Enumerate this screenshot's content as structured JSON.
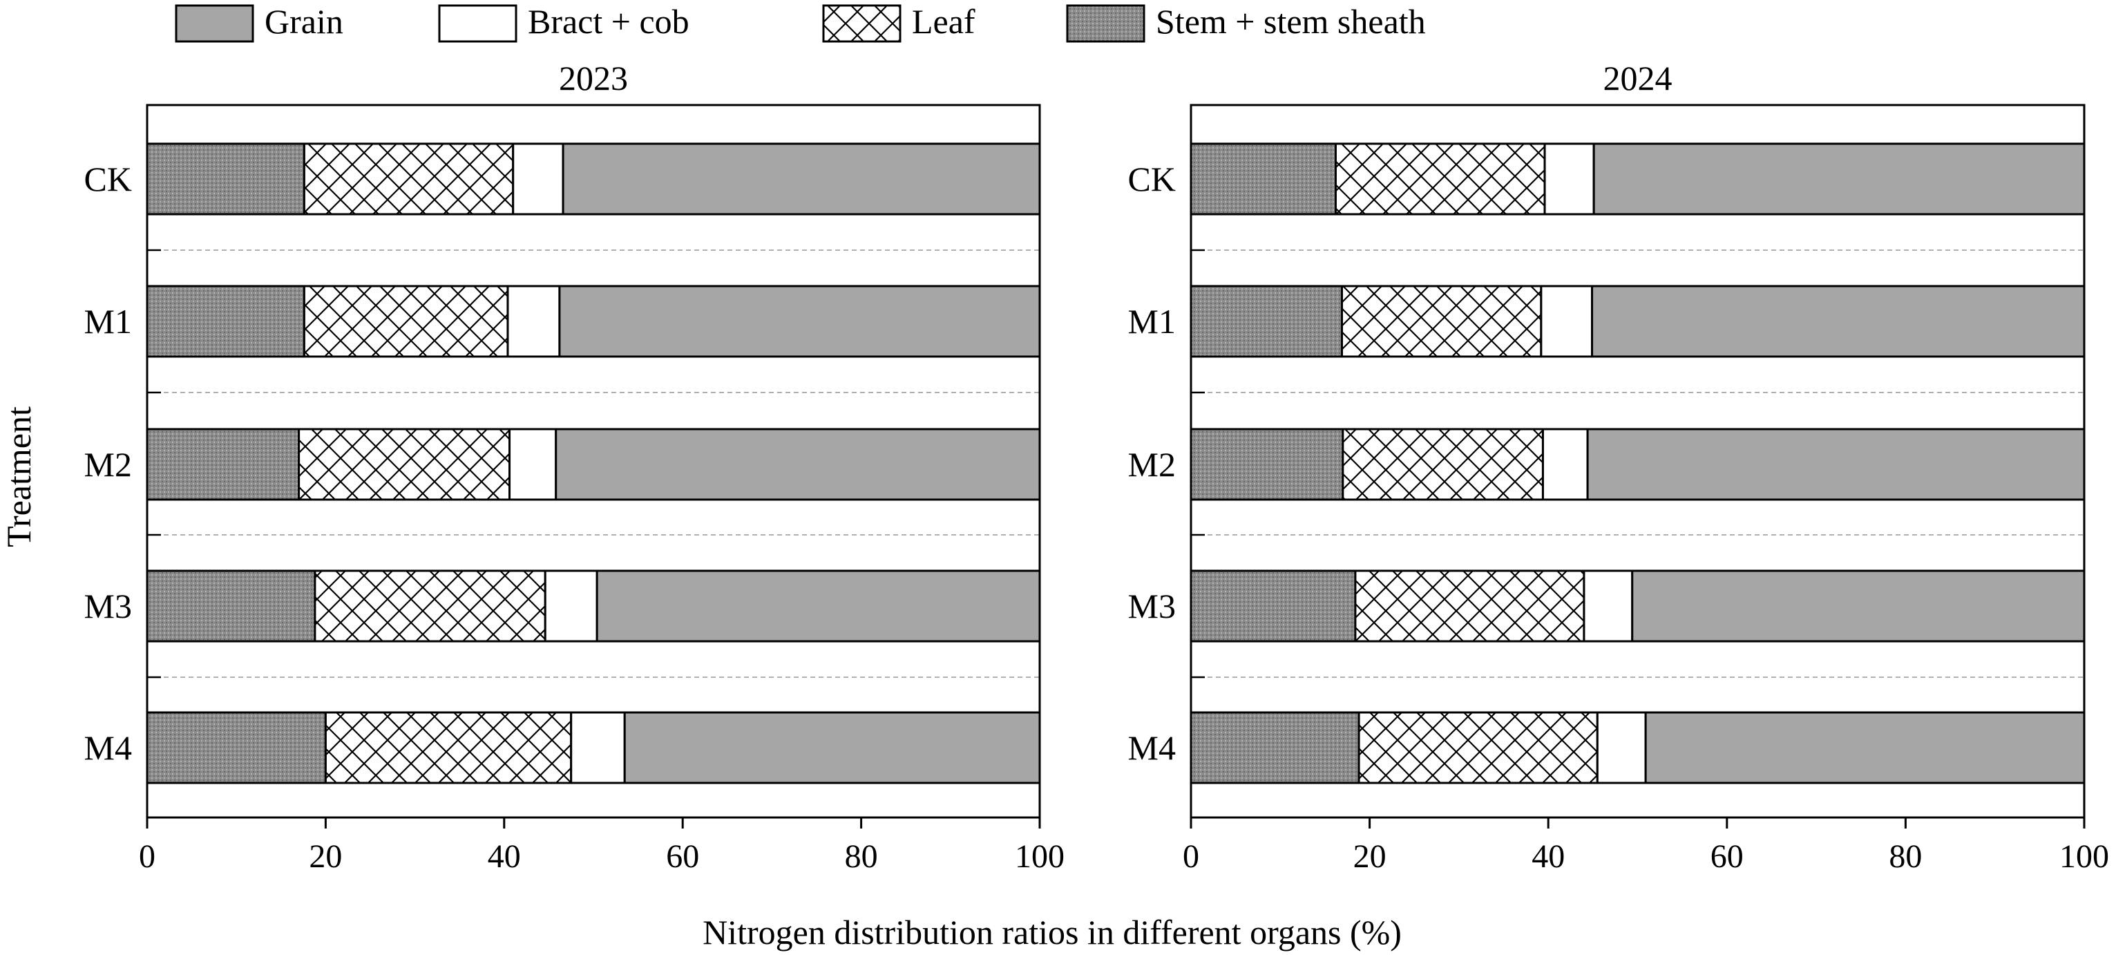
{
  "legend": {
    "placement": "top",
    "items": [
      {
        "key": "grain",
        "label": "Grain",
        "pattern": "solid-gray"
      },
      {
        "key": "bract",
        "label": "Bract + cob",
        "pattern": "white"
      },
      {
        "key": "leaf",
        "label": "Leaf",
        "pattern": "crosshatch"
      },
      {
        "key": "stem",
        "label": "Stem + stem sheath",
        "pattern": "stipple"
      }
    ]
  },
  "colors": {
    "grain": "#a6a6a6",
    "bract": "#ffffff",
    "stem": "#8c8c8c",
    "outline": "#000000",
    "separator": "#b0b0b0"
  },
  "ylabel": "Treatment",
  "xlabel": "Nitrogen distribution ratios in different organs (%)",
  "chart_data": [
    {
      "type": "bar",
      "orientation": "horizontal",
      "stacked": true,
      "title": "2023",
      "categories": [
        "CK",
        "M1",
        "M2",
        "M3",
        "M4"
      ],
      "xlim": [
        0,
        100
      ],
      "xticks": [
        0,
        20,
        40,
        60,
        80,
        100
      ],
      "series": [
        {
          "name": "Stem + stem sheath",
          "key": "stem",
          "values": [
            17.6,
            17.6,
            17.0,
            18.8,
            20.0
          ]
        },
        {
          "name": "Leaf",
          "key": "leaf",
          "values": [
            23.4,
            22.8,
            23.6,
            25.8,
            27.5
          ]
        },
        {
          "name": "Bract + cob",
          "key": "bract",
          "values": [
            5.6,
            5.8,
            5.2,
            5.8,
            6.0
          ]
        },
        {
          "name": "Grain",
          "key": "grain",
          "values": [
            53.4,
            53.8,
            54.2,
            49.6,
            46.5
          ]
        }
      ]
    },
    {
      "type": "bar",
      "orientation": "horizontal",
      "stacked": true,
      "title": "2024",
      "categories": [
        "CK",
        "M1",
        "M2",
        "M3",
        "M4"
      ],
      "xlim": [
        0,
        100
      ],
      "xticks": [
        0,
        20,
        40,
        60,
        80,
        100
      ],
      "series": [
        {
          "name": "Stem + stem sheath",
          "key": "stem",
          "values": [
            16.2,
            16.9,
            17.0,
            18.4,
            18.8
          ]
        },
        {
          "name": "Leaf",
          "key": "leaf",
          "values": [
            23.4,
            22.3,
            22.4,
            25.6,
            26.7
          ]
        },
        {
          "name": "Bract + cob",
          "key": "bract",
          "values": [
            5.5,
            5.7,
            5.0,
            5.4,
            5.4
          ]
        },
        {
          "name": "Grain",
          "key": "grain",
          "values": [
            54.9,
            55.1,
            55.6,
            50.6,
            49.1
          ]
        }
      ]
    }
  ]
}
